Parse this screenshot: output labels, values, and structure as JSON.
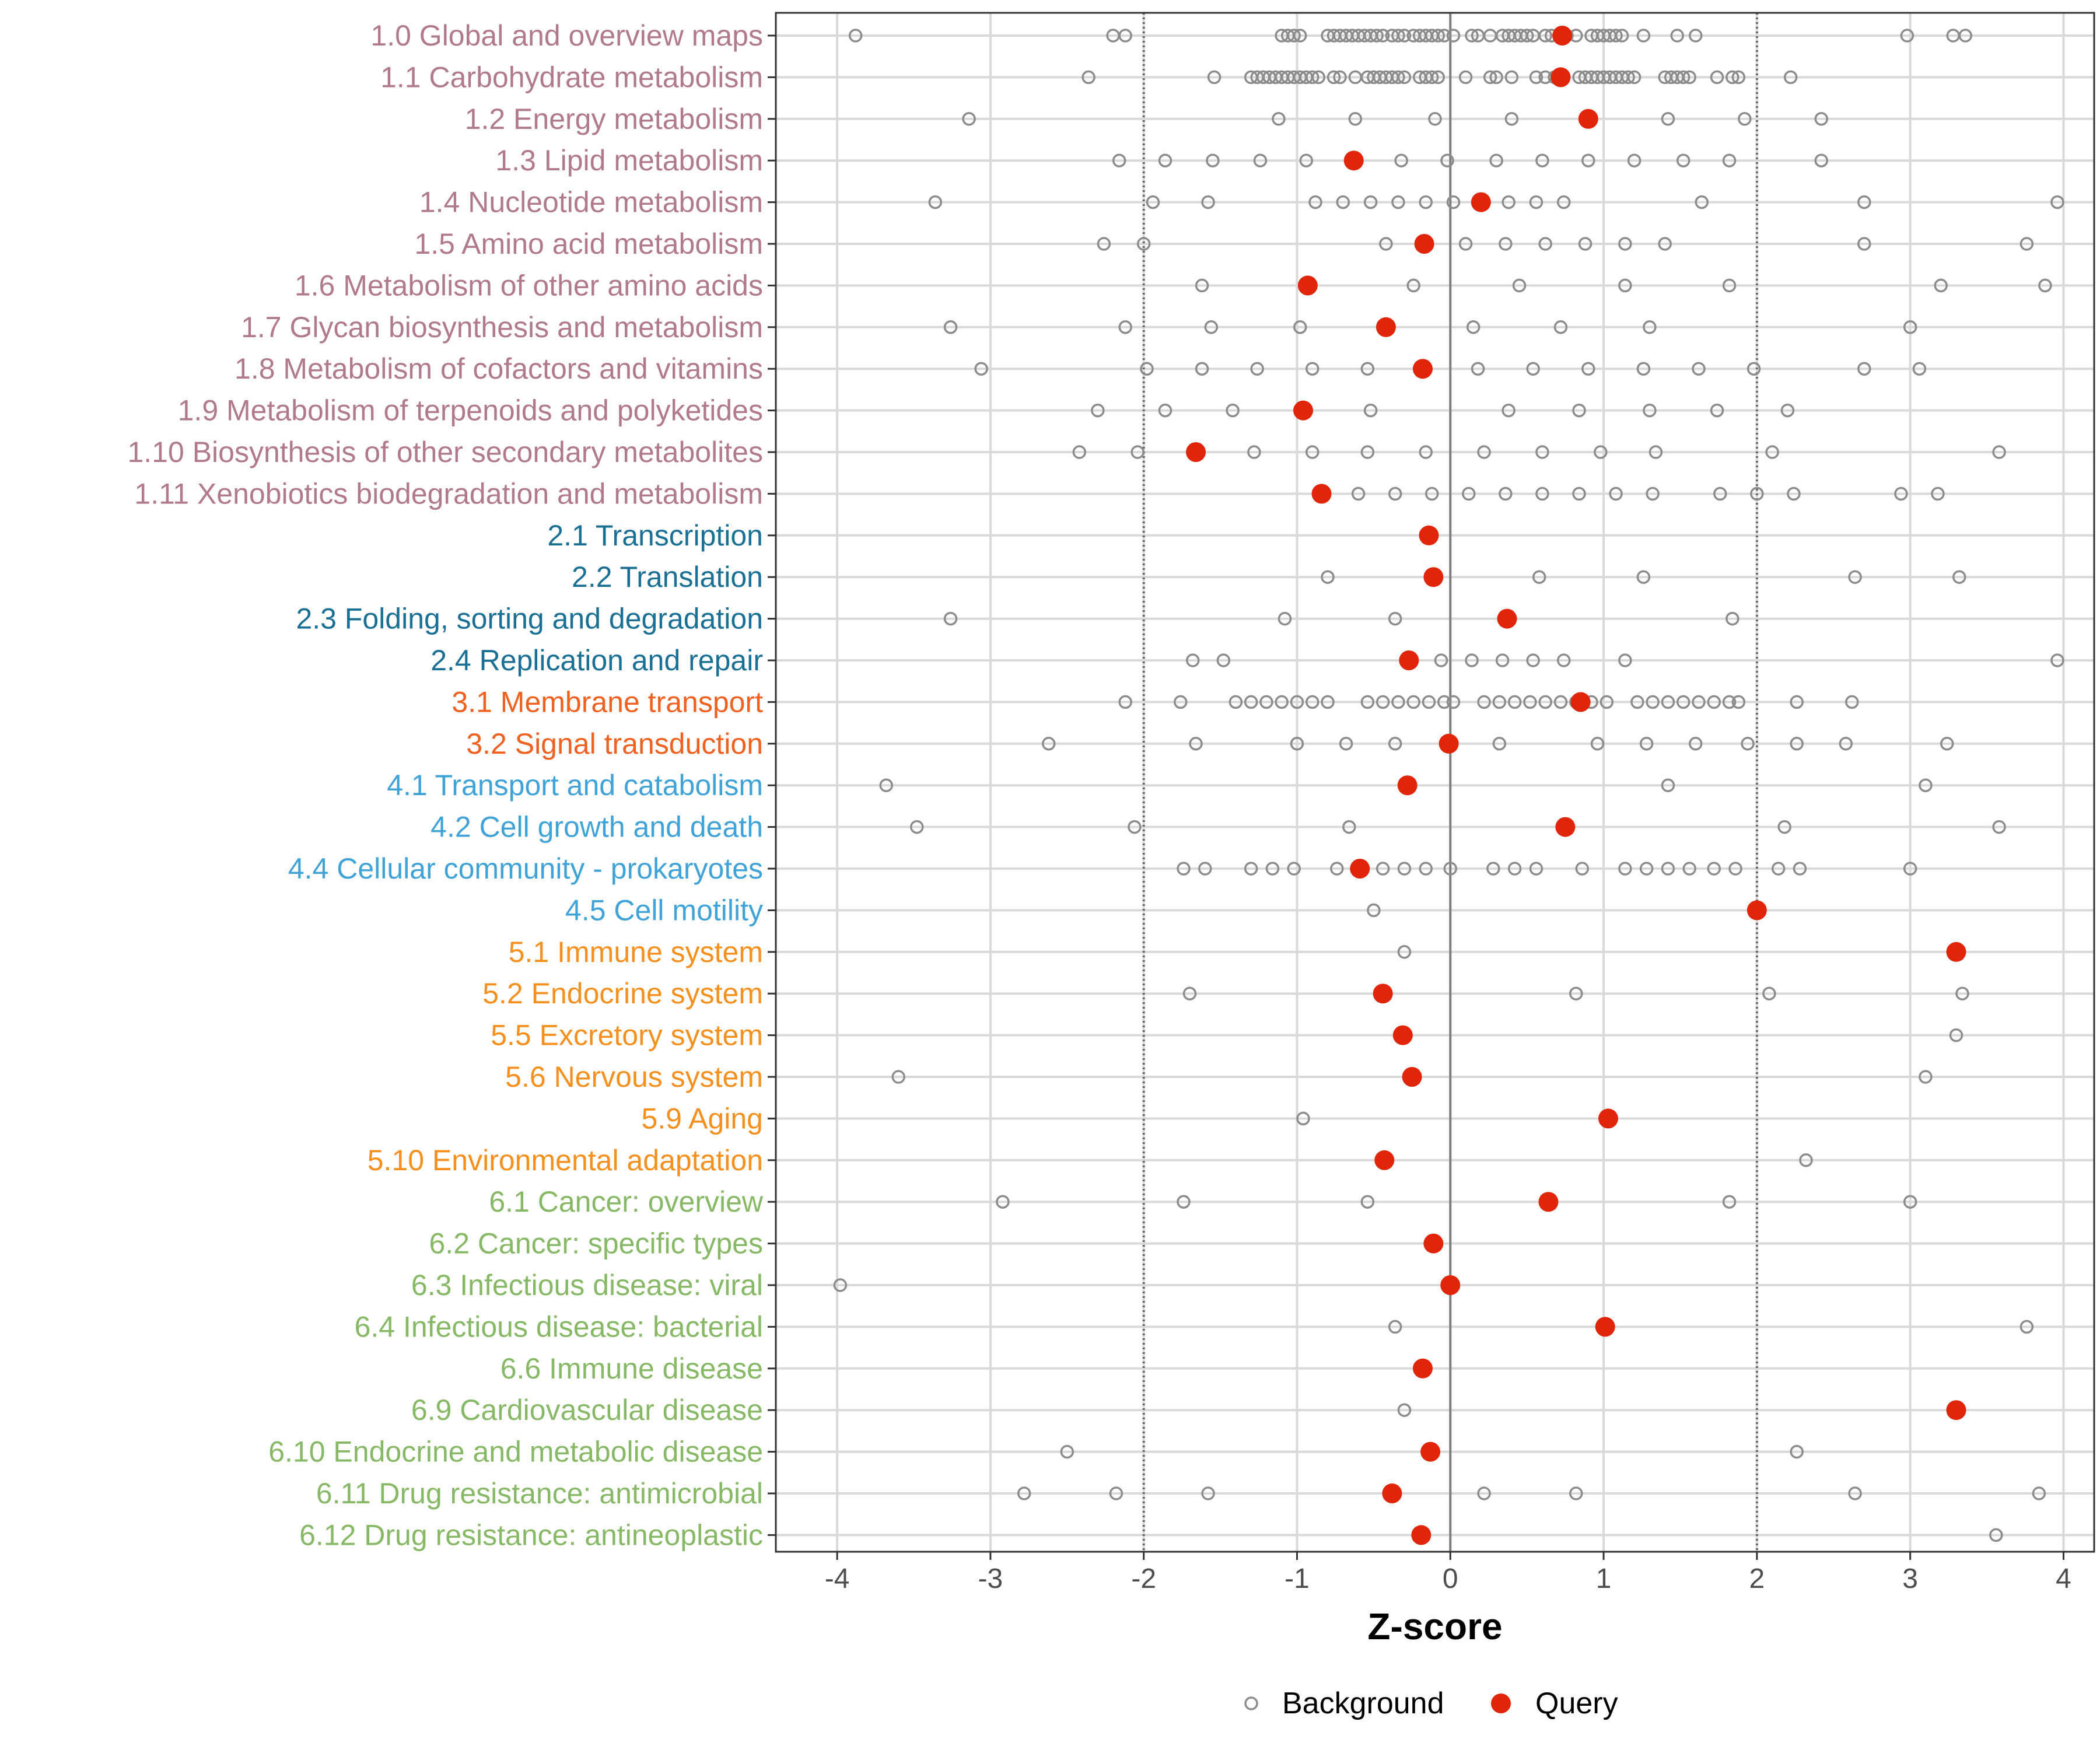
{
  "chart_data": {
    "type": "scatter",
    "xlabel": "Z-score",
    "ylabel": "",
    "xlim": [
      -4.4,
      4.2
    ],
    "xticks": [
      -4,
      -3,
      -2,
      -1,
      0,
      1,
      2,
      3,
      4
    ],
    "x_tick_labels": [
      "-4",
      "-3",
      "-2",
      "-1",
      "0",
      "1",
      "2",
      "3",
      "4"
    ],
    "reference_lines": [
      {
        "x": -2,
        "style": "dotted"
      },
      {
        "x": 0,
        "style": "solid"
      },
      {
        "x": 2,
        "style": "dotted"
      }
    ],
    "legend": {
      "position": "bottom",
      "entries": [
        {
          "name": "Background",
          "marker": "open-circle",
          "color": "#8c8c8c"
        },
        {
          "name": "Query",
          "marker": "filled-circle",
          "color": "#e0250a"
        }
      ]
    },
    "group_colors": {
      "1": "#b07a8a",
      "2": "#1a6f94",
      "3": "#f0601e",
      "4": "#3fa3d8",
      "5": "#f5901e",
      "6": "#86b865"
    },
    "categories": [
      {
        "label": "1.0 Global and overview maps",
        "group": "1",
        "query": 0.73,
        "background": [
          -3.88,
          -2.2,
          -2.12,
          -1.1,
          -1.06,
          -1.02,
          -0.98,
          -0.8,
          -0.76,
          -0.72,
          -0.68,
          -0.64,
          -0.6,
          -0.56,
          -0.52,
          -0.48,
          -0.44,
          -0.38,
          -0.34,
          -0.3,
          -0.24,
          -0.2,
          -0.16,
          -0.12,
          -0.08,
          -0.04,
          0.02,
          0.14,
          0.18,
          0.26,
          0.34,
          0.38,
          0.42,
          0.46,
          0.5,
          0.54,
          0.62,
          0.66,
          0.76,
          0.82,
          0.92,
          0.96,
          1.0,
          1.04,
          1.08,
          1.12,
          1.26,
          1.48,
          1.6,
          2.98,
          3.28,
          3.36
        ]
      },
      {
        "label": "1.1 Carbohydrate metabolism",
        "group": "1",
        "query": 0.72,
        "background": [
          -2.36,
          -1.54,
          -1.3,
          -1.26,
          -1.22,
          -1.18,
          -1.14,
          -1.1,
          -1.06,
          -1.02,
          -0.98,
          -0.94,
          -0.9,
          -0.86,
          -0.76,
          -0.72,
          -0.62,
          -0.54,
          -0.5,
          -0.46,
          -0.42,
          -0.38,
          -0.34,
          -0.3,
          -0.2,
          -0.16,
          -0.12,
          -0.08,
          0.1,
          0.26,
          0.3,
          0.4,
          0.56,
          0.62,
          0.68,
          0.84,
          0.88,
          0.92,
          0.96,
          1.0,
          1.04,
          1.08,
          1.12,
          1.16,
          1.2,
          1.4,
          1.44,
          1.48,
          1.52,
          1.56,
          1.74,
          1.84,
          1.88,
          2.22
        ]
      },
      {
        "label": "1.2 Energy metabolism",
        "group": "1",
        "query": 0.9,
        "background": [
          -3.14,
          -1.12,
          -0.62,
          -0.1,
          0.4,
          1.42,
          1.92,
          2.42
        ]
      },
      {
        "label": "1.3 Lipid metabolism",
        "group": "1",
        "query": -0.63,
        "background": [
          -2.16,
          -1.86,
          -1.55,
          -1.24,
          -0.94,
          -0.32,
          -0.02,
          0.3,
          0.6,
          0.9,
          1.2,
          1.52,
          1.82,
          2.42
        ]
      },
      {
        "label": "1.4 Nucleotide metabolism",
        "group": "1",
        "query": 0.2,
        "background": [
          -3.36,
          -1.94,
          -1.58,
          -0.88,
          -0.7,
          -0.52,
          -0.34,
          -0.16,
          0.02,
          0.38,
          0.56,
          0.74,
          1.64,
          2.7,
          3.96
        ]
      },
      {
        "label": "1.5 Amino acid metabolism",
        "group": "1",
        "query": -0.17,
        "background": [
          -2.26,
          -2.0,
          -0.42,
          0.1,
          0.36,
          0.62,
          0.88,
          1.14,
          1.4,
          2.7,
          3.76
        ]
      },
      {
        "label": "1.6 Metabolism of other amino acids",
        "group": "1",
        "query": -0.93,
        "background": [
          -1.62,
          -0.24,
          0.45,
          1.14,
          1.82,
          3.2,
          3.88
        ]
      },
      {
        "label": "1.7 Glycan biosynthesis and metabolism",
        "group": "1",
        "query": -0.42,
        "background": [
          -3.26,
          -2.12,
          -1.56,
          -0.98,
          0.15,
          0.72,
          1.3,
          3.0
        ]
      },
      {
        "label": "1.8 Metabolism of cofactors and vitamins",
        "group": "1",
        "query": -0.18,
        "background": [
          -3.06,
          -1.98,
          -1.62,
          -1.26,
          -0.9,
          -0.54,
          0.18,
          0.54,
          0.9,
          1.26,
          1.62,
          1.98,
          2.7,
          3.06
        ]
      },
      {
        "label": "1.9 Metabolism of terpenoids and polyketides",
        "group": "1",
        "query": -0.96,
        "background": [
          -2.3,
          -1.86,
          -1.42,
          -0.52,
          0.38,
          0.84,
          1.3,
          1.74,
          2.2
        ]
      },
      {
        "label": "1.10 Biosynthesis of other secondary metabolites",
        "group": "1",
        "query": -1.66,
        "background": [
          -2.42,
          -2.04,
          -1.28,
          -0.9,
          -0.54,
          -0.16,
          0.22,
          0.6,
          0.98,
          1.34,
          2.1,
          3.58
        ]
      },
      {
        "label": "1.11 Xenobiotics biodegradation and metabolism",
        "group": "1",
        "query": -0.84,
        "background": [
          -0.6,
          -0.36,
          -0.12,
          0.12,
          0.36,
          0.6,
          0.84,
          1.08,
          1.32,
          1.76,
          2.0,
          2.24,
          2.94,
          3.18
        ]
      },
      {
        "label": "2.1 Transcription",
        "group": "2",
        "query": -0.14,
        "background": []
      },
      {
        "label": "2.2 Translation",
        "group": "2",
        "query": -0.11,
        "background": [
          -0.8,
          0.58,
          1.26,
          2.64,
          3.32
        ]
      },
      {
        "label": "2.3 Folding, sorting and degradation",
        "group": "2",
        "query": 0.37,
        "background": [
          -3.26,
          -1.08,
          -0.36,
          1.84
        ]
      },
      {
        "label": "2.4 Replication and repair",
        "group": "2",
        "query": -0.27,
        "background": [
          -1.68,
          -1.48,
          -0.06,
          0.14,
          0.34,
          0.54,
          0.74,
          1.14,
          3.96
        ]
      },
      {
        "label": "3.1 Membrane transport",
        "group": "3",
        "query": 0.85,
        "background": [
          -2.12,
          -1.76,
          -1.4,
          -1.3,
          -1.2,
          -1.1,
          -1.0,
          -0.9,
          -0.8,
          -0.54,
          -0.44,
          -0.34,
          -0.24,
          -0.14,
          -0.04,
          0.02,
          0.22,
          0.32,
          0.42,
          0.52,
          0.62,
          0.72,
          0.82,
          0.92,
          1.02,
          1.22,
          1.32,
          1.42,
          1.52,
          1.62,
          1.72,
          1.82,
          1.88,
          2.26,
          2.62
        ]
      },
      {
        "label": "3.2 Signal transduction",
        "group": "3",
        "query": -0.01,
        "background": [
          -2.62,
          -1.66,
          -1.0,
          -0.68,
          -0.36,
          0.32,
          0.96,
          1.28,
          1.6,
          1.94,
          2.26,
          2.58,
          3.24
        ]
      },
      {
        "label": "4.1 Transport and catabolism",
        "group": "4",
        "query": -0.28,
        "background": [
          -3.68,
          1.42,
          3.1
        ]
      },
      {
        "label": "4.2 Cell growth and death",
        "group": "4",
        "query": 0.75,
        "background": [
          -3.48,
          -2.06,
          -0.66,
          2.18,
          3.58
        ]
      },
      {
        "label": "4.4 Cellular community - prokaryotes",
        "group": "4",
        "query": -0.59,
        "background": [
          -1.74,
          -1.6,
          -1.3,
          -1.16,
          -1.02,
          -0.74,
          -0.44,
          -0.3,
          -0.16,
          0.0,
          0.28,
          0.42,
          0.56,
          0.86,
          1.14,
          1.28,
          1.42,
          1.56,
          1.72,
          1.86,
          2.14,
          2.28,
          3.0
        ]
      },
      {
        "label": "4.5 Cell motility",
        "group": "4",
        "query": 2.0,
        "background": [
          -0.5
        ]
      },
      {
        "label": "5.1 Immune system",
        "group": "5",
        "query": 3.3,
        "background": [
          -0.3
        ]
      },
      {
        "label": "5.2 Endocrine system",
        "group": "5",
        "query": -0.44,
        "background": [
          -1.7,
          0.82,
          2.08,
          3.34
        ]
      },
      {
        "label": "5.5 Excretory system",
        "group": "5",
        "query": -0.31,
        "background": [
          3.3
        ]
      },
      {
        "label": "5.6 Nervous system",
        "group": "5",
        "query": -0.25,
        "background": [
          -3.6,
          3.1
        ]
      },
      {
        "label": "5.9 Aging",
        "group": "5",
        "query": 1.03,
        "background": [
          -0.96
        ]
      },
      {
        "label": "5.10 Environmental adaptation",
        "group": "5",
        "query": -0.43,
        "background": [
          2.32
        ]
      },
      {
        "label": "6.1 Cancer: overview",
        "group": "6",
        "query": 0.64,
        "background": [
          -2.92,
          -1.74,
          -0.54,
          1.82,
          3.0
        ]
      },
      {
        "label": "6.2 Cancer: specific types",
        "group": "6",
        "query": -0.11,
        "background": []
      },
      {
        "label": "6.3 Infectious disease: viral",
        "group": "6",
        "query": 0.0,
        "background": [
          -3.98
        ]
      },
      {
        "label": "6.4 Infectious disease: bacterial",
        "group": "6",
        "query": 1.01,
        "background": [
          -0.36,
          3.76
        ]
      },
      {
        "label": "6.6 Immune disease",
        "group": "6",
        "query": -0.18,
        "background": []
      },
      {
        "label": "6.9 Cardiovascular disease",
        "group": "6",
        "query": 3.3,
        "background": [
          -0.3
        ]
      },
      {
        "label": "6.10 Endocrine and metabolic disease",
        "group": "6",
        "query": -0.13,
        "background": [
          -2.5,
          2.26
        ]
      },
      {
        "label": "6.11 Drug resistance: antimicrobial",
        "group": "6",
        "query": -0.38,
        "background": [
          -2.78,
          -2.18,
          -1.58,
          0.22,
          0.82,
          2.64,
          3.84
        ]
      },
      {
        "label": "6.12 Drug resistance: antineoplastic",
        "group": "6",
        "query": -0.19,
        "background": [
          3.56
        ]
      }
    ]
  }
}
